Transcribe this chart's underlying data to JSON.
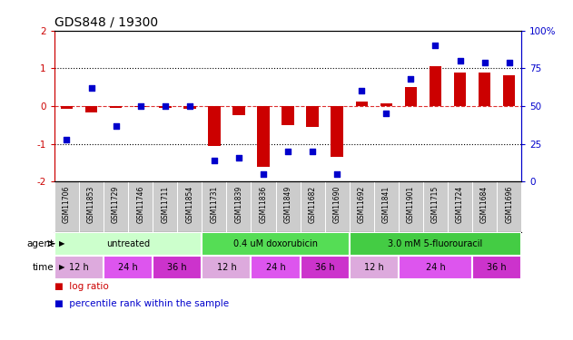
{
  "title": "GDS848 / 19300",
  "samples": [
    "GSM11706",
    "GSM11853",
    "GSM11729",
    "GSM11746",
    "GSM11711",
    "GSM11854",
    "GSM11731",
    "GSM11839",
    "GSM11836",
    "GSM11849",
    "GSM11682",
    "GSM11690",
    "GSM11692",
    "GSM11841",
    "GSM11901",
    "GSM11715",
    "GSM11724",
    "GSM11684",
    "GSM11696"
  ],
  "log_ratio": [
    -0.08,
    -0.18,
    -0.04,
    -0.03,
    -0.05,
    -0.08,
    -1.05,
    -0.25,
    -1.6,
    -0.5,
    -0.55,
    -1.35,
    0.13,
    0.07,
    0.5,
    1.05,
    0.9,
    0.88,
    0.82
  ],
  "percentile": [
    28,
    62,
    37,
    50,
    50,
    50,
    14,
    16,
    5,
    20,
    20,
    5,
    60,
    45,
    68,
    90,
    80,
    79,
    79
  ],
  "ylim": [
    -2.0,
    2.0
  ],
  "yticks_left": [
    -2,
    -1,
    0,
    1,
    2
  ],
  "yticks_right": [
    0,
    25,
    50,
    75,
    100
  ],
  "bar_color": "#cc0000",
  "dot_color": "#0000cc",
  "agent_data": [
    {
      "start": 0,
      "end": 6,
      "color": "#ccffcc",
      "label": "untreated"
    },
    {
      "start": 6,
      "end": 12,
      "color": "#55dd55",
      "label": "0.4 uM doxorubicin"
    },
    {
      "start": 12,
      "end": 19,
      "color": "#44cc44",
      "label": "3.0 mM 5-fluorouracil"
    }
  ],
  "time_data": [
    {
      "start": 0,
      "end": 2,
      "color": "#ddaadd",
      "label": "12 h"
    },
    {
      "start": 2,
      "end": 4,
      "color": "#dd55ee",
      "label": "24 h"
    },
    {
      "start": 4,
      "end": 6,
      "color": "#cc33cc",
      "label": "36 h"
    },
    {
      "start": 6,
      "end": 8,
      "color": "#ddaadd",
      "label": "12 h"
    },
    {
      "start": 8,
      "end": 10,
      "color": "#dd55ee",
      "label": "24 h"
    },
    {
      "start": 10,
      "end": 12,
      "color": "#cc33cc",
      "label": "36 h"
    },
    {
      "start": 12,
      "end": 14,
      "color": "#ddaadd",
      "label": "12 h"
    },
    {
      "start": 14,
      "end": 17,
      "color": "#dd55ee",
      "label": "24 h"
    },
    {
      "start": 17,
      "end": 19,
      "color": "#cc33cc",
      "label": "36 h"
    }
  ],
  "legend_items": [
    {
      "label": "log ratio",
      "color": "#cc0000"
    },
    {
      "label": "percentile rank within the sample",
      "color": "#0000cc"
    }
  ],
  "xticklabel_bg": "#cccccc",
  "left_axis_color": "#cc0000",
  "right_axis_color": "#0000cc",
  "hline_zero_color": "#dd3333",
  "hline_ref_color": "#000000"
}
